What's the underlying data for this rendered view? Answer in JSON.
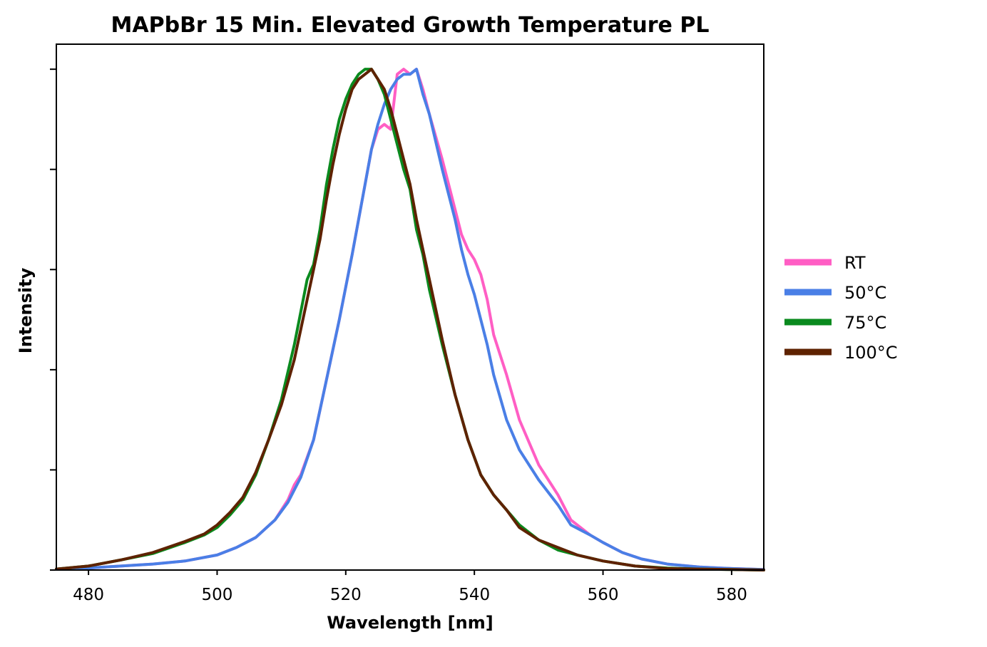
{
  "chart_data": {
    "type": "line",
    "title": "MAPbBr 15 Min. Elevated Growth Temperature PL",
    "xlabel": "Wavelength [nm]",
    "ylabel": "Intensity",
    "xlim": [
      475,
      585
    ],
    "ylim": [
      0,
      1.05
    ],
    "x_ticks": [
      480,
      500,
      520,
      540,
      560,
      580
    ],
    "y_ticks": [
      0,
      0.2,
      0.4,
      0.6,
      0.8,
      1.0
    ],
    "y_tick_labels_shown": false,
    "grid": false,
    "legend_position": "right",
    "series": [
      {
        "name": "RT",
        "color": "#ff5ec4",
        "x": [
          475,
          480,
          485,
          490,
          495,
          500,
          503,
          506,
          509,
          511,
          512,
          513,
          515,
          517,
          519,
          521,
          523,
          524,
          525,
          526,
          527,
          528,
          529,
          530,
          531,
          532,
          533,
          535,
          537,
          538,
          539,
          540,
          541,
          542,
          543,
          545,
          547,
          550,
          553,
          555,
          558,
          560,
          563,
          566,
          570,
          575,
          580,
          585
        ],
        "y": [
          0.002,
          0.004,
          0.008,
          0.012,
          0.018,
          0.03,
          0.045,
          0.065,
          0.1,
          0.14,
          0.17,
          0.19,
          0.26,
          0.38,
          0.5,
          0.63,
          0.77,
          0.84,
          0.88,
          0.89,
          0.88,
          0.99,
          1.0,
          0.99,
          1.0,
          0.96,
          0.91,
          0.82,
          0.72,
          0.67,
          0.64,
          0.62,
          0.59,
          0.54,
          0.47,
          0.39,
          0.3,
          0.21,
          0.15,
          0.1,
          0.07,
          0.055,
          0.035,
          0.022,
          0.012,
          0.006,
          0.003,
          0.001
        ]
      },
      {
        "name": "50°C",
        "color": "#4a7fe6",
        "x": [
          475,
          480,
          485,
          490,
          495,
          500,
          503,
          506,
          509,
          511,
          512,
          513,
          515,
          517,
          519,
          521,
          523,
          524,
          525,
          526,
          527,
          528,
          529,
          530,
          531,
          532,
          533,
          535,
          537,
          538,
          539,
          540,
          541,
          542,
          543,
          545,
          547,
          550,
          553,
          555,
          558,
          560,
          563,
          566,
          570,
          575,
          580,
          585
        ],
        "y": [
          0.002,
          0.004,
          0.008,
          0.012,
          0.018,
          0.03,
          0.045,
          0.065,
          0.1,
          0.135,
          0.16,
          0.185,
          0.26,
          0.38,
          0.5,
          0.63,
          0.77,
          0.84,
          0.89,
          0.93,
          0.96,
          0.98,
          0.99,
          0.99,
          1.0,
          0.95,
          0.91,
          0.8,
          0.7,
          0.64,
          0.59,
          0.55,
          0.5,
          0.45,
          0.39,
          0.3,
          0.24,
          0.18,
          0.13,
          0.09,
          0.07,
          0.055,
          0.035,
          0.022,
          0.012,
          0.006,
          0.003,
          0.001
        ]
      },
      {
        "name": "75°C",
        "color": "#0a8a1e",
        "x": [
          475,
          480,
          485,
          490,
          495,
          498,
          500,
          502,
          504,
          506,
          508,
          510,
          512,
          514,
          515,
          516,
          517,
          518,
          519,
          520,
          521,
          522,
          523,
          524,
          525,
          526,
          527,
          528,
          529,
          530,
          531,
          532,
          533,
          535,
          537,
          539,
          541,
          543,
          545,
          547,
          550,
          553,
          556,
          560,
          565,
          570,
          575,
          580,
          585
        ],
        "y": [
          0.002,
          0.008,
          0.02,
          0.033,
          0.055,
          0.07,
          0.085,
          0.11,
          0.14,
          0.19,
          0.26,
          0.34,
          0.45,
          0.58,
          0.61,
          0.68,
          0.77,
          0.84,
          0.9,
          0.94,
          0.97,
          0.99,
          1.0,
          1.0,
          0.98,
          0.95,
          0.9,
          0.85,
          0.8,
          0.76,
          0.68,
          0.63,
          0.56,
          0.45,
          0.35,
          0.26,
          0.19,
          0.15,
          0.12,
          0.09,
          0.06,
          0.04,
          0.03,
          0.018,
          0.008,
          0.004,
          0.002,
          0.001,
          0.0
        ]
      },
      {
        "name": "100°C",
        "color": "#5e2200",
        "x": [
          475,
          480,
          485,
          490,
          495,
          498,
          500,
          502,
          504,
          506,
          508,
          510,
          512,
          514,
          516,
          517,
          518,
          519,
          520,
          521,
          522,
          523,
          524,
          525,
          526,
          527,
          528,
          529,
          530,
          531,
          532,
          533,
          535,
          537,
          539,
          541,
          543,
          545,
          547,
          550,
          553,
          556,
          560,
          565,
          570,
          575,
          580,
          585
        ],
        "y": [
          0.002,
          0.008,
          0.02,
          0.035,
          0.057,
          0.072,
          0.09,
          0.115,
          0.145,
          0.195,
          0.26,
          0.33,
          0.42,
          0.54,
          0.66,
          0.74,
          0.81,
          0.87,
          0.92,
          0.96,
          0.98,
          0.99,
          1.0,
          0.98,
          0.96,
          0.92,
          0.87,
          0.82,
          0.77,
          0.7,
          0.64,
          0.58,
          0.46,
          0.35,
          0.26,
          0.19,
          0.15,
          0.12,
          0.085,
          0.06,
          0.045,
          0.03,
          0.018,
          0.008,
          0.003,
          0.002,
          0.001,
          0.0
        ]
      }
    ]
  }
}
